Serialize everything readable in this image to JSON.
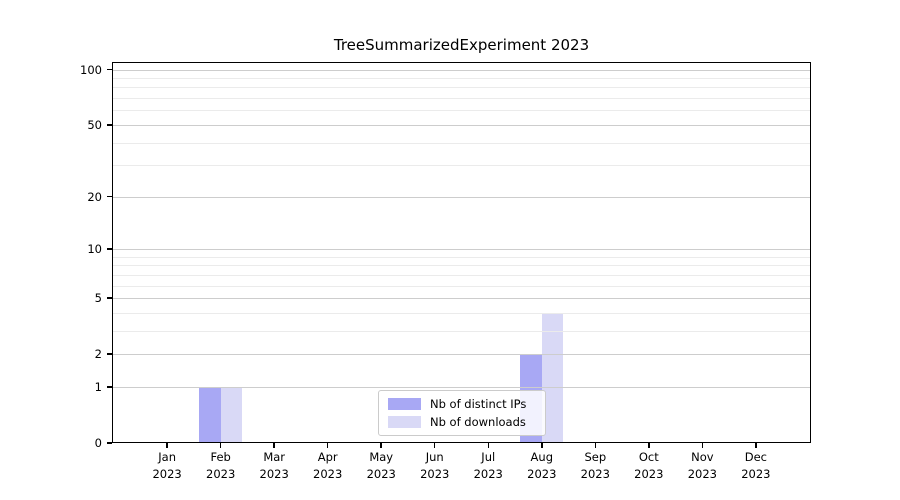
{
  "title": "TreeSummarizedExperiment 2023",
  "chart_data": {
    "type": "bar",
    "categories": [
      "Jan",
      "Feb",
      "Mar",
      "Apr",
      "May",
      "Jun",
      "Jul",
      "Aug",
      "Sep",
      "Oct",
      "Nov",
      "Dec"
    ],
    "category_year": "2023",
    "series": [
      {
        "name": "Nb of distinct IPs",
        "color": "#a8a8f4",
        "values": [
          0,
          1,
          0,
          0,
          0,
          0,
          0,
          2,
          0,
          0,
          0,
          0
        ]
      },
      {
        "name": "Nb of downloads",
        "color": "#d9d9f6",
        "values": [
          0,
          1,
          0,
          0,
          0,
          0,
          0,
          4,
          0,
          0,
          0,
          0
        ]
      }
    ],
    "yscale": "log1p",
    "ylim": [
      0,
      110
    ],
    "yticks": [
      0,
      1,
      2,
      5,
      10,
      20,
      50,
      100
    ],
    "yticks_minor": [
      3,
      4,
      6,
      7,
      8,
      9,
      30,
      40,
      60,
      70,
      80,
      90
    ],
    "grid": "horizontal",
    "legend_position": "lower-center",
    "xlabel": "",
    "ylabel": ""
  },
  "colors": {
    "background": "#ffffff",
    "axis": "#000000",
    "grid_major": "#cdcdcd",
    "grid_minor": "#ebebeb",
    "legend_border": "#cbcbcb"
  }
}
